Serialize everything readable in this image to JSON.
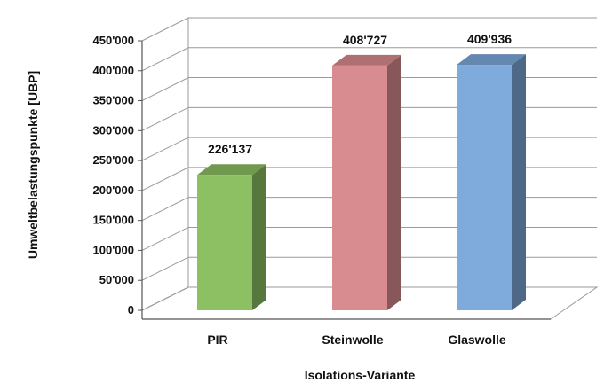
{
  "chart_data": {
    "type": "bar",
    "title": "",
    "xlabel": "Isolations-Variante",
    "ylabel": "Umweltbelastungspunkte [UBP]",
    "ylim": [
      0,
      450000
    ],
    "yticks": [
      0,
      50000,
      100000,
      150000,
      200000,
      250000,
      300000,
      350000,
      400000,
      450000
    ],
    "ytick_labels": [
      "0",
      "50'000",
      "100'000",
      "150'000",
      "200'000",
      "250'000",
      "300'000",
      "350'000",
      "400'000",
      "450'000"
    ],
    "categories": [
      "PIR",
      "Steinwolle",
      "Glaswolle"
    ],
    "values": [
      226137,
      408727,
      409936
    ],
    "data_labels": [
      "226'137",
      "408'727",
      "409'936"
    ],
    "colors": [
      "#8dc063",
      "#d98c8f",
      "#7eaadc"
    ],
    "grid": true,
    "legend": "none"
  }
}
